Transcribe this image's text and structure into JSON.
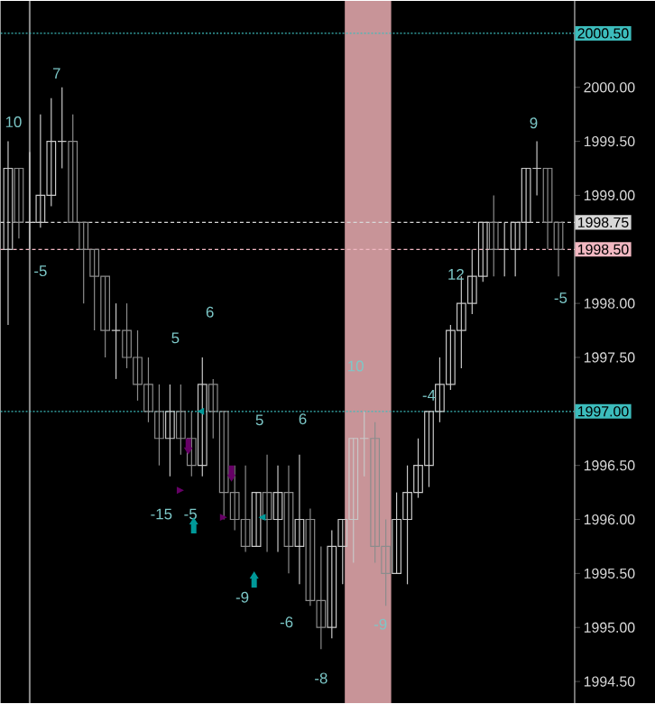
{
  "chart_data": {
    "type": "candlestick",
    "tick_labels": "y",
    "colors": [
      "#c8c8c8",
      "#8c8c8c",
      "#c8c8c8",
      "#c8c8c8",
      "#c8c8c8",
      "#c8c8c8",
      "#8c8c8c",
      "#8c8c8c",
      "#8c8c8c",
      "#8c8c8c",
      "#c8c8c8",
      "#8c8c8c",
      "#8c8c8c",
      "#8c8c8c",
      "#8c8c8c",
      "#c8c8c8",
      "#8c8c8c",
      "#8c8c8c",
      "#c8c8c8",
      "#8c8c8c",
      "#8c8c8c",
      "#8c8c8c",
      "#8c8c8c",
      "#c8c8c8",
      "#8c8c8c",
      "#c8c8c8",
      "#8c8c8c",
      "#c8c8c8",
      "#8c8c8c",
      "#8c8c8c",
      "#c8c8c8",
      "#c8c8c8",
      "#c8c8c8",
      "#c8c8c8",
      "#8c8c8c",
      "#8c8c8c",
      "#c8c8c8",
      "#c8c8c8",
      "#c8c8c8",
      "#c8c8c8",
      "#c8c8c8",
      "#c8c8c8",
      "#c8c8c8",
      "#c8c8c8",
      "#c8c8c8",
      "#8c8c8c",
      "#c8c8c8",
      "#c8c8c8",
      "#c8c8c8",
      "#c8c8c8",
      "#8c8c8c",
      "#8c8c8c"
    ],
    "categories": [
      null,
      null,
      null,
      null,
      null,
      null,
      null,
      null,
      null,
      null,
      null,
      null,
      null,
      null,
      null,
      null,
      null,
      null,
      null,
      null,
      null,
      null,
      null,
      null,
      null,
      null,
      null,
      null,
      null,
      null,
      null,
      null,
      null,
      null,
      null,
      null,
      null,
      null,
      null,
      null,
      null,
      null,
      null,
      null,
      null,
      null,
      null,
      null,
      null,
      null,
      null,
      null
    ],
    "ylim": [
      1994.3,
      2000.8
    ],
    "yticks": [
      {
        "value": 1994.5,
        "label": "1994.50"
      },
      {
        "value": 1995,
        "label": "1995.00"
      },
      {
        "value": 1995.5,
        "label": "1995.50"
      },
      {
        "value": 1996,
        "label": "1996.00"
      },
      {
        "value": 1996.5,
        "label": "1996.50"
      },
      {
        "value": 1997.5,
        "label": "1997.50"
      },
      {
        "value": 1998,
        "label": "1998.00"
      },
      {
        "value": 1999,
        "label": "1999.00"
      },
      {
        "value": 1999.5,
        "label": "1999.50"
      },
      {
        "value": 2000,
        "label": "2000.00"
      }
    ],
    "ohlc": [
      [
        1998.5,
        1999.5,
        1997.8,
        1999.25
      ],
      [
        1999.25,
        1999.25,
        1998.6,
        1998.75
      ],
      [
        1998.75,
        1999.4,
        1998.5,
        1998.75
      ],
      [
        1998.75,
        1999.75,
        1998.7,
        1999.0
      ],
      [
        1999.0,
        1999.9,
        1998.9,
        1999.5
      ],
      [
        1999.5,
        2000.0,
        1999.25,
        1999.5
      ],
      [
        1999.5,
        1999.75,
        1998.75,
        1998.75
      ],
      [
        1998.75,
        1998.75,
        1998.0,
        1998.5
      ],
      [
        1998.5,
        1998.5,
        1997.75,
        1998.25
      ],
      [
        1998.25,
        1998.25,
        1997.5,
        1997.75
      ],
      [
        1997.75,
        1998.0,
        1997.3,
        1997.75
      ],
      [
        1997.75,
        1998.0,
        1997.4,
        1997.5
      ],
      [
        1997.5,
        1997.75,
        1997.1,
        1997.25
      ],
      [
        1997.25,
        1997.5,
        1996.9,
        1997.0
      ],
      [
        1997.0,
        1997.25,
        1996.5,
        1996.75
      ],
      [
        1996.75,
        1997.25,
        1996.4,
        1997.0
      ],
      [
        1997.0,
        1997.25,
        1996.6,
        1996.75
      ],
      [
        1996.75,
        1997.0,
        1996.4,
        1996.5
      ],
      [
        1996.5,
        1997.5,
        1996.4,
        1997.25
      ],
      [
        1997.25,
        1997.3,
        1996.75,
        1997.0
      ],
      [
        1997.0,
        1997.0,
        1996.0,
        1996.25
      ],
      [
        1996.25,
        1996.5,
        1995.9,
        1996.0
      ],
      [
        1996.0,
        1996.5,
        1995.7,
        1995.75
      ],
      [
        1995.75,
        1996.25,
        1995.75,
        1996.25
      ],
      [
        1996.25,
        1996.6,
        1995.7,
        1996.0
      ],
      [
        1996.0,
        1996.5,
        1995.7,
        1996.25
      ],
      [
        1996.25,
        1996.5,
        1995.5,
        1995.75
      ],
      [
        1995.75,
        1996.6,
        1995.4,
        1996.0
      ],
      [
        1996.0,
        1996.1,
        1995.2,
        1995.25
      ],
      [
        1995.25,
        1995.75,
        1994.8,
        1995.0
      ],
      [
        1995.0,
        1995.9,
        1994.9,
        1995.75
      ],
      [
        1995.75,
        1996.0,
        1995.4,
        1996.0
      ],
      [
        1996.0,
        1996.75,
        1995.6,
        1996.75
      ],
      [
        1996.75,
        1997.0,
        1996.4,
        1996.75
      ],
      [
        1996.75,
        1996.9,
        1995.6,
        1995.75
      ],
      [
        1995.75,
        1996.0,
        1995.2,
        1995.5
      ],
      [
        1995.5,
        1996.25,
        1995.5,
        1996.0
      ],
      [
        1996.0,
        1996.5,
        1995.4,
        1996.25
      ],
      [
        1996.25,
        1996.75,
        1996.2,
        1996.5
      ],
      [
        1996.5,
        1997.0,
        1996.3,
        1997.0
      ],
      [
        1997.0,
        1997.5,
        1996.9,
        1997.25
      ],
      [
        1997.25,
        1997.8,
        1997.2,
        1997.75
      ],
      [
        1997.75,
        1998.25,
        1997.4,
        1998.0
      ],
      [
        1998.0,
        1998.5,
        1997.9,
        1998.25
      ],
      [
        1998.25,
        1998.75,
        1998.2,
        1998.75
      ],
      [
        1998.75,
        1999.0,
        1998.25,
        1998.5
      ],
      [
        1998.5,
        1998.75,
        1998.25,
        1998.5
      ],
      [
        1998.5,
        1998.75,
        1998.25,
        1998.75
      ],
      [
        1998.75,
        1999.25,
        1998.5,
        1999.25
      ],
      [
        1999.25,
        1999.5,
        1999.0,
        1999.25
      ],
      [
        1999.25,
        1999.25,
        1998.5,
        1998.75
      ],
      [
        1998.75,
        1998.75,
        1998.25,
        1998.5
      ]
    ],
    "ref_lines": [
      {
        "axis": "y",
        "value": 2000.5,
        "label": "2000.50",
        "color": "#3cbcbc",
        "line_style": "dotted"
      },
      {
        "axis": "y",
        "value": 1998.75,
        "label": "1998.75",
        "color": "#d8d8d8",
        "line_style": "dashed"
      },
      {
        "axis": "y",
        "value": 1998.5,
        "label": "1998.50",
        "color": "#f2b8c2",
        "line_style": "dashed"
      },
      {
        "axis": "y",
        "value": 1997.0,
        "label": "1997.00",
        "color": "#3cbcbc",
        "line_style": "dotted"
      }
    ],
    "annotations": [
      "10",
      "7",
      "-5",
      "5",
      "6",
      "-15",
      "-5",
      "5",
      "6",
      "-9",
      "-6",
      "-8",
      "10",
      "-9",
      "12",
      "-4",
      "9",
      "-5"
    ]
  }
}
